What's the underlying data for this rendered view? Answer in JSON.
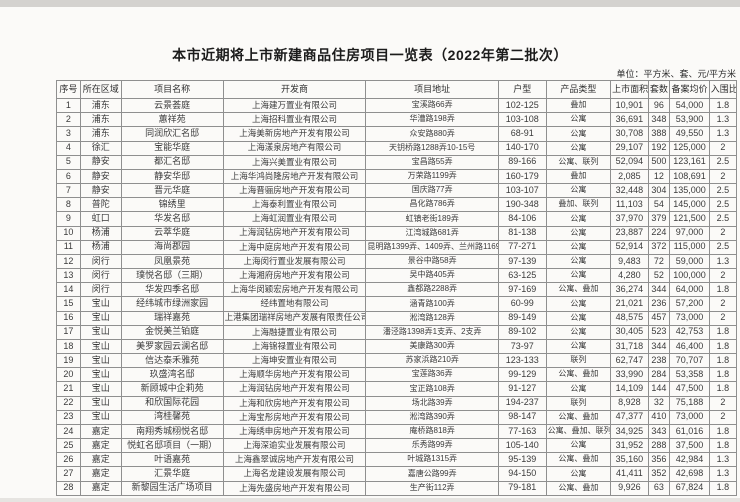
{
  "page": {
    "title": "本市近期将上市新建商品住房项目一览表（2022年第二批次）",
    "unit_note": "单位：平方米、套、元/平方米"
  },
  "table": {
    "headers": [
      "序号",
      "所在区域",
      "项目名称",
      "开发商",
      "项目地址",
      "户型",
      "产品类型",
      "上市面积",
      "套数",
      "备案均价",
      "入围比"
    ],
    "col_widths_percent": [
      3.5,
      6,
      15,
      21,
      19.5,
      7,
      9.5,
      5.5,
      3.2,
      5.8,
      4
    ],
    "rows": [
      [
        "1",
        "浦东",
        "云景荟庭",
        "上海建万置业有限公司",
        "宝溪路66弄",
        "102-125",
        "叠加",
        "10,901",
        "96",
        "54,000",
        "1.8"
      ],
      [
        "2",
        "浦东",
        "蕙祥苑",
        "上海招科置业有限公司",
        "华漕路198弄",
        "103-108",
        "公寓",
        "36,691",
        "348",
        "53,900",
        "1.3"
      ],
      [
        "3",
        "浦东",
        "同润欣汇名邸",
        "上海美新房地产开发有限公司",
        "众安路880弄",
        "68-91",
        "公寓",
        "30,708",
        "388",
        "49,550",
        "1.3"
      ],
      [
        "4",
        "徐汇",
        "宝能华庭",
        "上海漾泉房地产有限公司",
        "天钥桥路1288弄10-15号",
        "140-170",
        "公寓",
        "29,107",
        "192",
        "125,000",
        "2"
      ],
      [
        "5",
        "静安",
        "都汇名邸",
        "上海兴美置业有限公司",
        "宝昌路55弄",
        "89-166",
        "公寓、联列",
        "52,094",
        "500",
        "123,161",
        "2.5"
      ],
      [
        "6",
        "静安",
        "静安华邸",
        "上海华鸿尚隆房地产开发有限公司",
        "万荣路1199弄",
        "160-179",
        "叠加",
        "2,085",
        "12",
        "108,691",
        "2"
      ],
      [
        "7",
        "静安",
        "晋元华庭",
        "上海晋骊房地产开发有限公司",
        "国庆路77弄",
        "103-107",
        "公寓",
        "32,448",
        "304",
        "135,000",
        "2.5"
      ],
      [
        "8",
        "普陀",
        "锦绣里",
        "上海泰利置业有限公司",
        "昌化路786弄",
        "190-348",
        "叠加、联列",
        "11,103",
        "54",
        "145,000",
        "2.5"
      ],
      [
        "9",
        "虹口",
        "华发名邸",
        "上海虹润置业有限公司",
        "虹镇老街189弄",
        "84-106",
        "公寓",
        "37,970",
        "379",
        "121,500",
        "2.5"
      ],
      [
        "10",
        "杨浦",
        "云萃华庭",
        "上海润钻房地产开发有限公司",
        "江湾城路681弄",
        "81-138",
        "公寓",
        "23,887",
        "224",
        "97,000",
        "2"
      ],
      [
        "11",
        "杨浦",
        "海尚郡园",
        "上海中庭房地产开发有限公司",
        "昆明路1399弄、1409弄、兰州路1169号",
        "77-271",
        "公寓",
        "52,914",
        "372",
        "115,000",
        "2.5"
      ],
      [
        "12",
        "闵行",
        "凤凰景苑",
        "上海闵行置业发展有限公司",
        "景谷中路58弄",
        "97-139",
        "公寓",
        "9,483",
        "72",
        "59,000",
        "1.3"
      ],
      [
        "13",
        "闵行",
        "璞悦名邸（三期）",
        "上海湘府房地产开发有限公司",
        "吴中路405弄",
        "63-125",
        "公寓",
        "4,280",
        "52",
        "100,000",
        "2"
      ],
      [
        "14",
        "闵行",
        "华发四季名邸",
        "上海华闵颖宏房地产开发有限公司",
        "鑫都路2288弄",
        "97-169",
        "公寓、叠加",
        "36,274",
        "344",
        "64,000",
        "1.8"
      ],
      [
        "15",
        "宝山",
        "经纬城市绿洲家园",
        "经纬置地有限公司",
        "涵青路100弄",
        "60-99",
        "公寓",
        "21,021",
        "236",
        "57,200",
        "2"
      ],
      [
        "16",
        "宝山",
        "瑞祥嘉苑",
        "上港集团瑞祥房地产发展有限责任公司",
        "淞湾路128弄",
        "89-149",
        "公寓",
        "48,575",
        "457",
        "73,000",
        "2"
      ],
      [
        "17",
        "宝山",
        "金悦美兰铂庭",
        "上海融捷置业有限公司",
        "潘泾路1398弄1支弄、2支弄",
        "89-102",
        "公寓",
        "30,405",
        "523",
        "42,753",
        "1.8"
      ],
      [
        "18",
        "宝山",
        "美罗家园云澜名邸",
        "上海锦禄置业有限公司",
        "美康路300弄",
        "73-97",
        "公寓",
        "31,718",
        "344",
        "46,400",
        "1.8"
      ],
      [
        "19",
        "宝山",
        "信达泰禾雅苑",
        "上海坤安置业有限公司",
        "苏家浜路210弄",
        "123-133",
        "联列",
        "62,747",
        "238",
        "70,707",
        "1.8"
      ],
      [
        "20",
        "宝山",
        "玖盛湾名邸",
        "上海顺华房地产开发有限公司",
        "宝莲路36弄",
        "99-129",
        "公寓、叠加",
        "33,990",
        "284",
        "53,358",
        "1.8"
      ],
      [
        "21",
        "宝山",
        "新顾城中企莉苑",
        "上海润钻房地产开发有限公司",
        "宝正路108弄",
        "91-127",
        "公寓",
        "14,109",
        "144",
        "47,500",
        "1.8"
      ],
      [
        "22",
        "宝山",
        "和欣国际花园",
        "上海和欣房地产开发有限公司",
        "场北路39弄",
        "194-237",
        "联列",
        "8,928",
        "32",
        "75,188",
        "2"
      ],
      [
        "23",
        "宝山",
        "湾桂馨苑",
        "上海宝彤房地产开发有限公司",
        "淞湾路390弄",
        "98-147",
        "公寓、叠加",
        "47,377",
        "410",
        "73,000",
        "2"
      ],
      [
        "24",
        "嘉定",
        "南翔秀城栩悦名邸",
        "上海绣申房地产开发有限公司",
        "庵桥路818弄",
        "77-163",
        "公寓、叠加、联列",
        "34,925",
        "343",
        "61,016",
        "1.8"
      ],
      [
        "25",
        "嘉定",
        "悦虹名邸项目（一期）",
        "上海深逾实业发展有限公司",
        "乐秀路99弄",
        "105-140",
        "公寓",
        "31,952",
        "288",
        "37,500",
        "1.8"
      ],
      [
        "26",
        "嘉定",
        "叶语嘉苑",
        "上海鑫翠诚房地产开发有限公司",
        "叶城路1315弄",
        "95-139",
        "公寓、叠加",
        "35,160",
        "356",
        "42,984",
        "1.3"
      ],
      [
        "27",
        "嘉定",
        "汇景华庭",
        "上海名龙建设发展有限公司",
        "嘉唐公路99弄",
        "94-150",
        "公寓",
        "41,411",
        "352",
        "42,698",
        "1.3"
      ],
      [
        "28",
        "嘉定",
        "新黎园生活广场项目",
        "上海先盛房地产开发有限公司",
        "生产街112弄",
        "79-181",
        "公寓、叠加",
        "9,926",
        "63",
        "67,824",
        "1.8"
      ]
    ]
  }
}
